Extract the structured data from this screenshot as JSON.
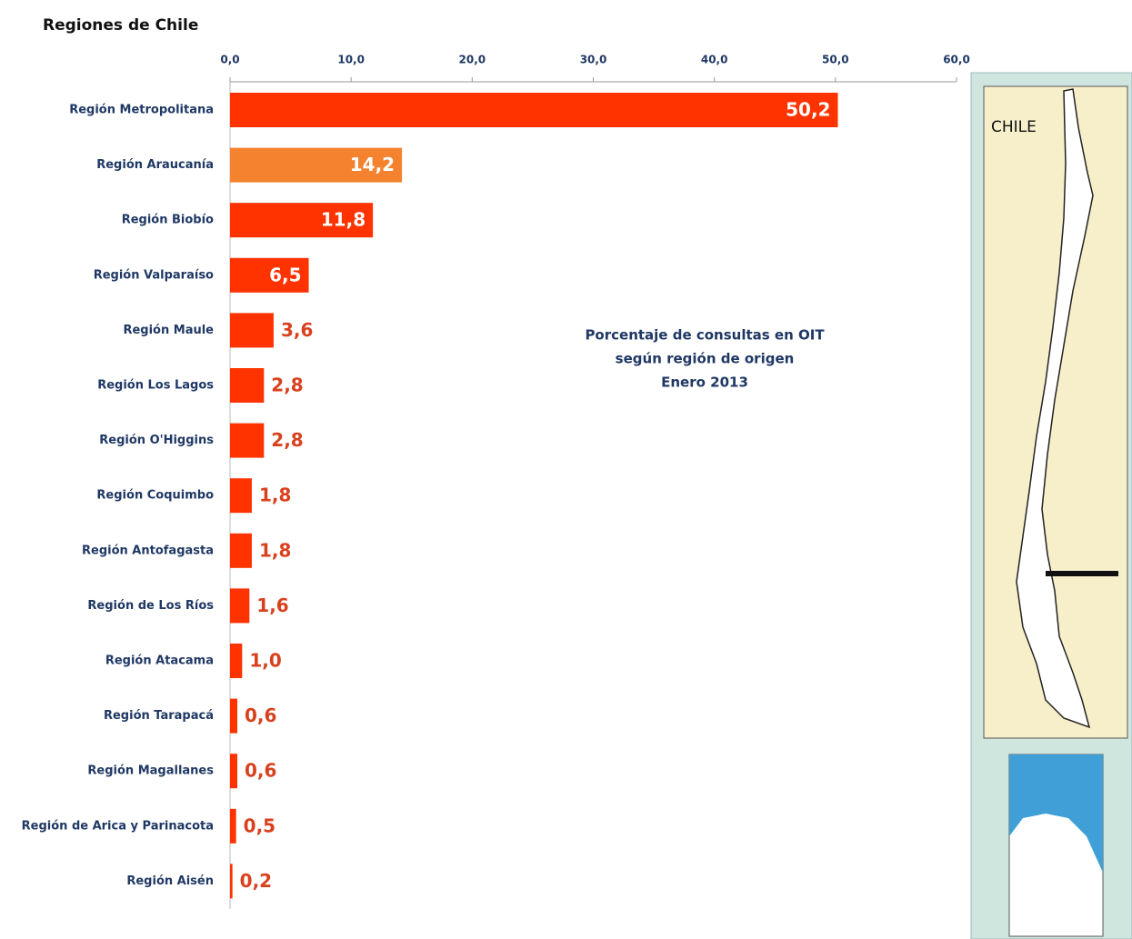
{
  "chart_data": {
    "type": "bar",
    "orientation": "horizontal",
    "title": "Regiones de Chile",
    "annotation": [
      "Porcentaje de consultas en OIT",
      "según región de origen",
      "Enero 2013"
    ],
    "map_label": "CHILE",
    "categories": [
      "Región Metropolitana",
      "Región Araucanía",
      "Región Biobío",
      "Región Valparaíso",
      "Región Maule",
      "Región Los Lagos",
      "Región O'Higgins",
      "Región Coquimbo",
      "Región Antofagasta",
      "Región de Los Ríos",
      "Región Atacama",
      "Región Tarapacá",
      "Región Magallanes",
      "Región de Arica y Parinacota",
      "Región Aisén"
    ],
    "values": [
      50.2,
      14.2,
      11.8,
      6.5,
      3.6,
      2.8,
      2.8,
      1.8,
      1.8,
      1.6,
      1.0,
      0.6,
      0.6,
      0.5,
      0.2
    ],
    "value_labels": [
      "50,2",
      "14,2",
      "11,8",
      "6,5",
      "3,6",
      "2,8",
      "2,8",
      "1,8",
      "1,8",
      "1,6",
      "1,0",
      "0,6",
      "0,6",
      "0,5",
      "0,2"
    ],
    "colors": [
      "#ff3300",
      "#f5822e",
      "#ff3300",
      "#ff3300",
      "#ff3300",
      "#ff3300",
      "#ff3300",
      "#ff3300",
      "#ff3300",
      "#ff3300",
      "#ff3300",
      "#ff3300",
      "#ff3300",
      "#ff3300",
      "#ff3300"
    ],
    "xlim": [
      0,
      60
    ],
    "xticks": [
      {
        "value": 0,
        "label": "0,0"
      },
      {
        "value": 10,
        "label": "10,0"
      },
      {
        "value": 20,
        "label": "20,0"
      },
      {
        "value": 30,
        "label": "30,0"
      },
      {
        "value": 40,
        "label": "40,0"
      },
      {
        "value": 50,
        "label": "50,0"
      },
      {
        "value": 60,
        "label": "60,0"
      }
    ]
  }
}
